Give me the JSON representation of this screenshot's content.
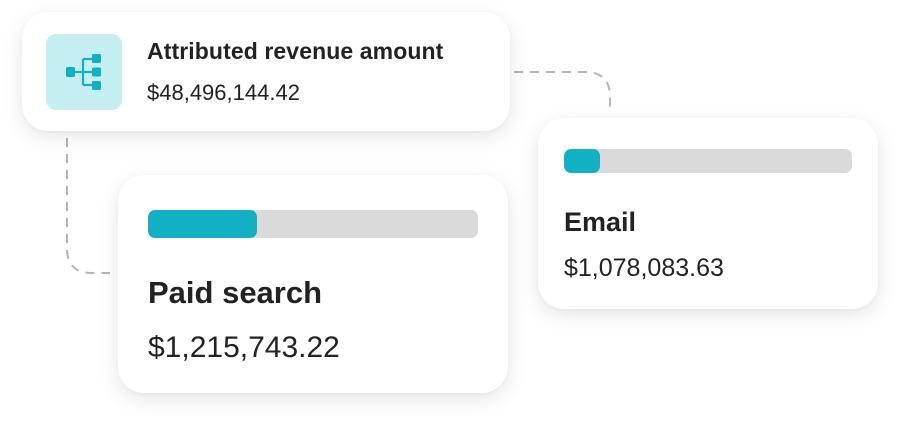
{
  "colors": {
    "accent": "#12B0C3",
    "track": "#DADADA",
    "icon_tile_bg": "#C5EEF2",
    "connector": "#B4B4B4",
    "text": "#222222"
  },
  "total": {
    "icon": "hierarchy-tree-icon",
    "title": "Attributed revenue amount",
    "value": "$48,496,144.42"
  },
  "channels": [
    {
      "label": "Paid search",
      "value": "$1,215,743.22",
      "progress_percent": 33
    },
    {
      "label": "Email",
      "value": "$1,078,083.63",
      "progress_percent": 12.5
    }
  ]
}
